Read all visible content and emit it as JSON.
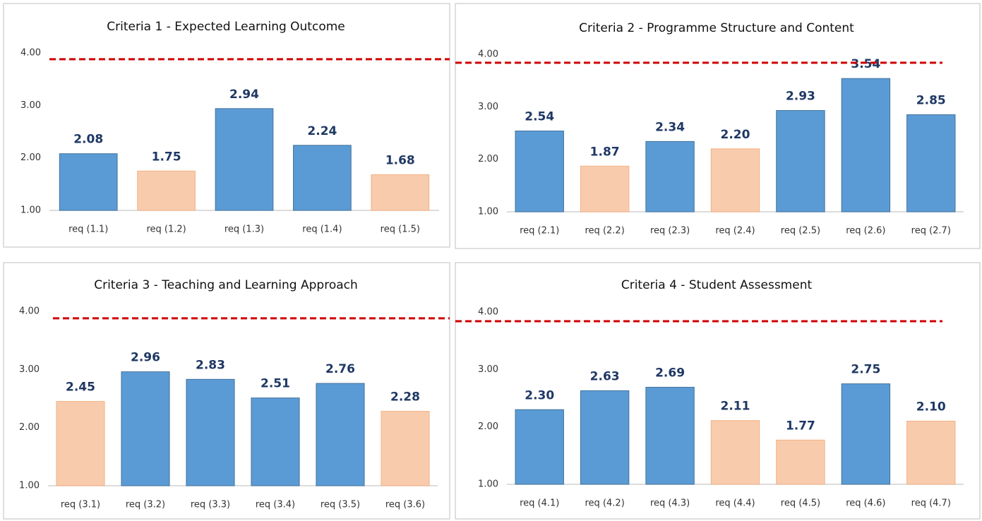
{
  "chart_data": [
    {
      "type": "bar",
      "title": "Criteria 1 - Expected Learning Outcome",
      "categories": [
        "req (1.1)",
        "req (1.2)",
        "req (1.3)",
        "req (1.4)",
        "req (1.5)"
      ],
      "values": [
        2.08,
        1.75,
        2.94,
        2.24,
        1.68
      ],
      "value_labels": [
        "2.08",
        "1.75",
        "2.94",
        "2.24",
        "1.68"
      ],
      "colors": [
        "#5b9bd5",
        "#f8cbad",
        "#5b9bd5",
        "#5b9bd5",
        "#f8cbad"
      ],
      "ylim": [
        1,
        4
      ],
      "yticks": [
        {
          "value": 1,
          "label": "1.00"
        },
        {
          "value": 2,
          "label": "2.00"
        },
        {
          "value": 3,
          "label": "3.00"
        },
        {
          "value": 4,
          "label": "4.00"
        }
      ],
      "threshold": 3.88,
      "threshold_color": "#d00000"
    },
    {
      "type": "bar",
      "title": "Criteria  2 - Programme Structure and Content",
      "categories": [
        "req (2.1)",
        "req (2.2)",
        "req (2.3)",
        "req (2.4)",
        "req (2.5)",
        "req (2.6)",
        "req (2.7)"
      ],
      "values": [
        2.54,
        1.87,
        2.34,
        2.2,
        2.93,
        3.54,
        2.85
      ],
      "value_labels": [
        "2.54",
        "1.87",
        "2.34",
        "2.20",
        "2.93",
        "3.54",
        "2.85"
      ],
      "colors": [
        "#5b9bd5",
        "#f8cbad",
        "#5b9bd5",
        "#f8cbad",
        "#5b9bd5",
        "#5b9bd5",
        "#5b9bd5"
      ],
      "ylim": [
        1,
        4
      ],
      "yticks": [
        {
          "value": 1,
          "label": "1.00"
        },
        {
          "value": 2,
          "label": "2.00"
        },
        {
          "value": 3,
          "label": "3.00"
        },
        {
          "value": 4,
          "label": "4.00"
        }
      ],
      "threshold": 3.84,
      "threshold_color": "#d00000"
    },
    {
      "type": "bar",
      "title": "Criteria 3 - Teaching and Learning Approach",
      "categories": [
        "req (3.1)",
        "req (3.2)",
        "req (3.3)",
        "req (3.4)",
        "req (3.5)",
        "req (3.6)"
      ],
      "values": [
        2.45,
        2.96,
        2.83,
        2.51,
        2.76,
        2.28
      ],
      "value_labels": [
        "2.45",
        "2.96",
        "2.83",
        "2.51",
        "2.76",
        "2.28"
      ],
      "colors": [
        "#f8cbad",
        "#5b9bd5",
        "#5b9bd5",
        "#5b9bd5",
        "#5b9bd5",
        "#f8cbad"
      ],
      "ylim": [
        1,
        4
      ],
      "yticks": [
        {
          "value": 1,
          "label": "1.00"
        },
        {
          "value": 2,
          "label": "2.00"
        },
        {
          "value": 3,
          "label": "3.00"
        },
        {
          "value": 4,
          "label": "4.00"
        }
      ],
      "threshold": 3.88,
      "threshold_color": "#d00000"
    },
    {
      "type": "bar",
      "title": "Criteria 4 - Student Assessment",
      "categories": [
        "req (4.1)",
        "req (4.2)",
        "req (4.3)",
        "req (4.4)",
        "req (4.5)",
        "req (4.6)",
        "req (4.7)"
      ],
      "values": [
        2.3,
        2.63,
        2.69,
        2.11,
        1.77,
        2.75,
        2.1
      ],
      "value_labels": [
        "2.30",
        "2.63",
        "2.69",
        "2.11",
        "1.77",
        "2.75",
        "2.10"
      ],
      "colors": [
        "#5b9bd5",
        "#5b9bd5",
        "#5b9bd5",
        "#f8cbad",
        "#f8cbad",
        "#5b9bd5",
        "#f8cbad"
      ],
      "ylim": [
        1,
        4
      ],
      "yticks": [
        {
          "value": 1,
          "label": "1.00"
        },
        {
          "value": 2,
          "label": "2.00"
        },
        {
          "value": 3,
          "label": "3.00"
        },
        {
          "value": 4,
          "label": "4.00"
        }
      ],
      "threshold": 3.84,
      "threshold_color": "#d00000"
    }
  ]
}
